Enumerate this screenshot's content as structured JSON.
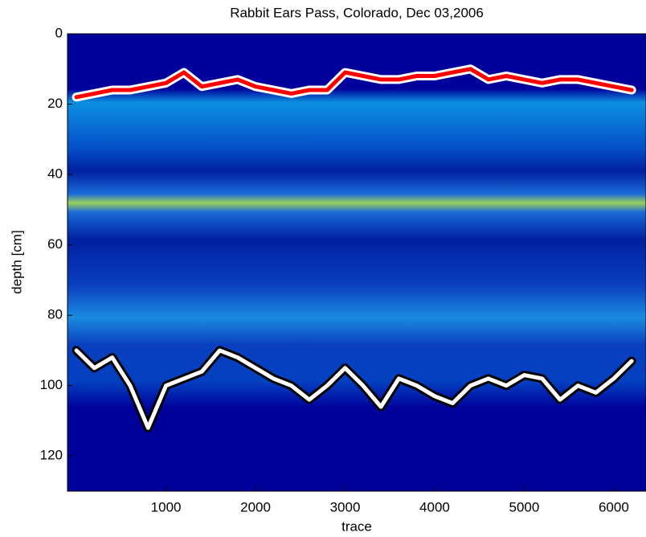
{
  "chart_data": {
    "type": "line",
    "title": "Rabbit Ears Pass, Colorado, Dec 03,2006",
    "x_label": "trace",
    "y_label": "depth [cm]",
    "x": [
      0,
      200,
      400,
      600,
      800,
      1000,
      1200,
      1400,
      1600,
      1800,
      2000,
      2200,
      2400,
      2600,
      2800,
      3000,
      3200,
      3400,
      3600,
      3800,
      4000,
      4200,
      4400,
      4600,
      4800,
      5000,
      5200,
      5400,
      5600,
      5800,
      6000,
      6200
    ],
    "series": [
      {
        "color": "#ff0000",
        "values": [
          18,
          17,
          16,
          16,
          15,
          14,
          11,
          15,
          14,
          13,
          15,
          16,
          17,
          16,
          16,
          11,
          12,
          13,
          13,
          12,
          12,
          11,
          10,
          13,
          12,
          13,
          14,
          13,
          13,
          14,
          15,
          16
        ]
      },
      {
        "color": "#ffffff",
        "values": [
          90,
          95,
          92,
          100,
          112,
          100,
          98,
          96,
          90,
          92,
          95,
          98,
          100,
          104,
          100,
          95,
          100,
          106,
          98,
          100,
          103,
          105,
          100,
          98,
          100,
          97,
          98,
          104,
          100,
          102,
          98,
          93
        ]
      }
    ],
    "xlim": [
      -100,
      6360
    ],
    "ylim": [
      130,
      0
    ],
    "xticks": [
      1000,
      2000,
      3000,
      4000,
      5000,
      6000
    ],
    "yticks": [
      0,
      20,
      40,
      60,
      80,
      100,
      120
    ]
  }
}
